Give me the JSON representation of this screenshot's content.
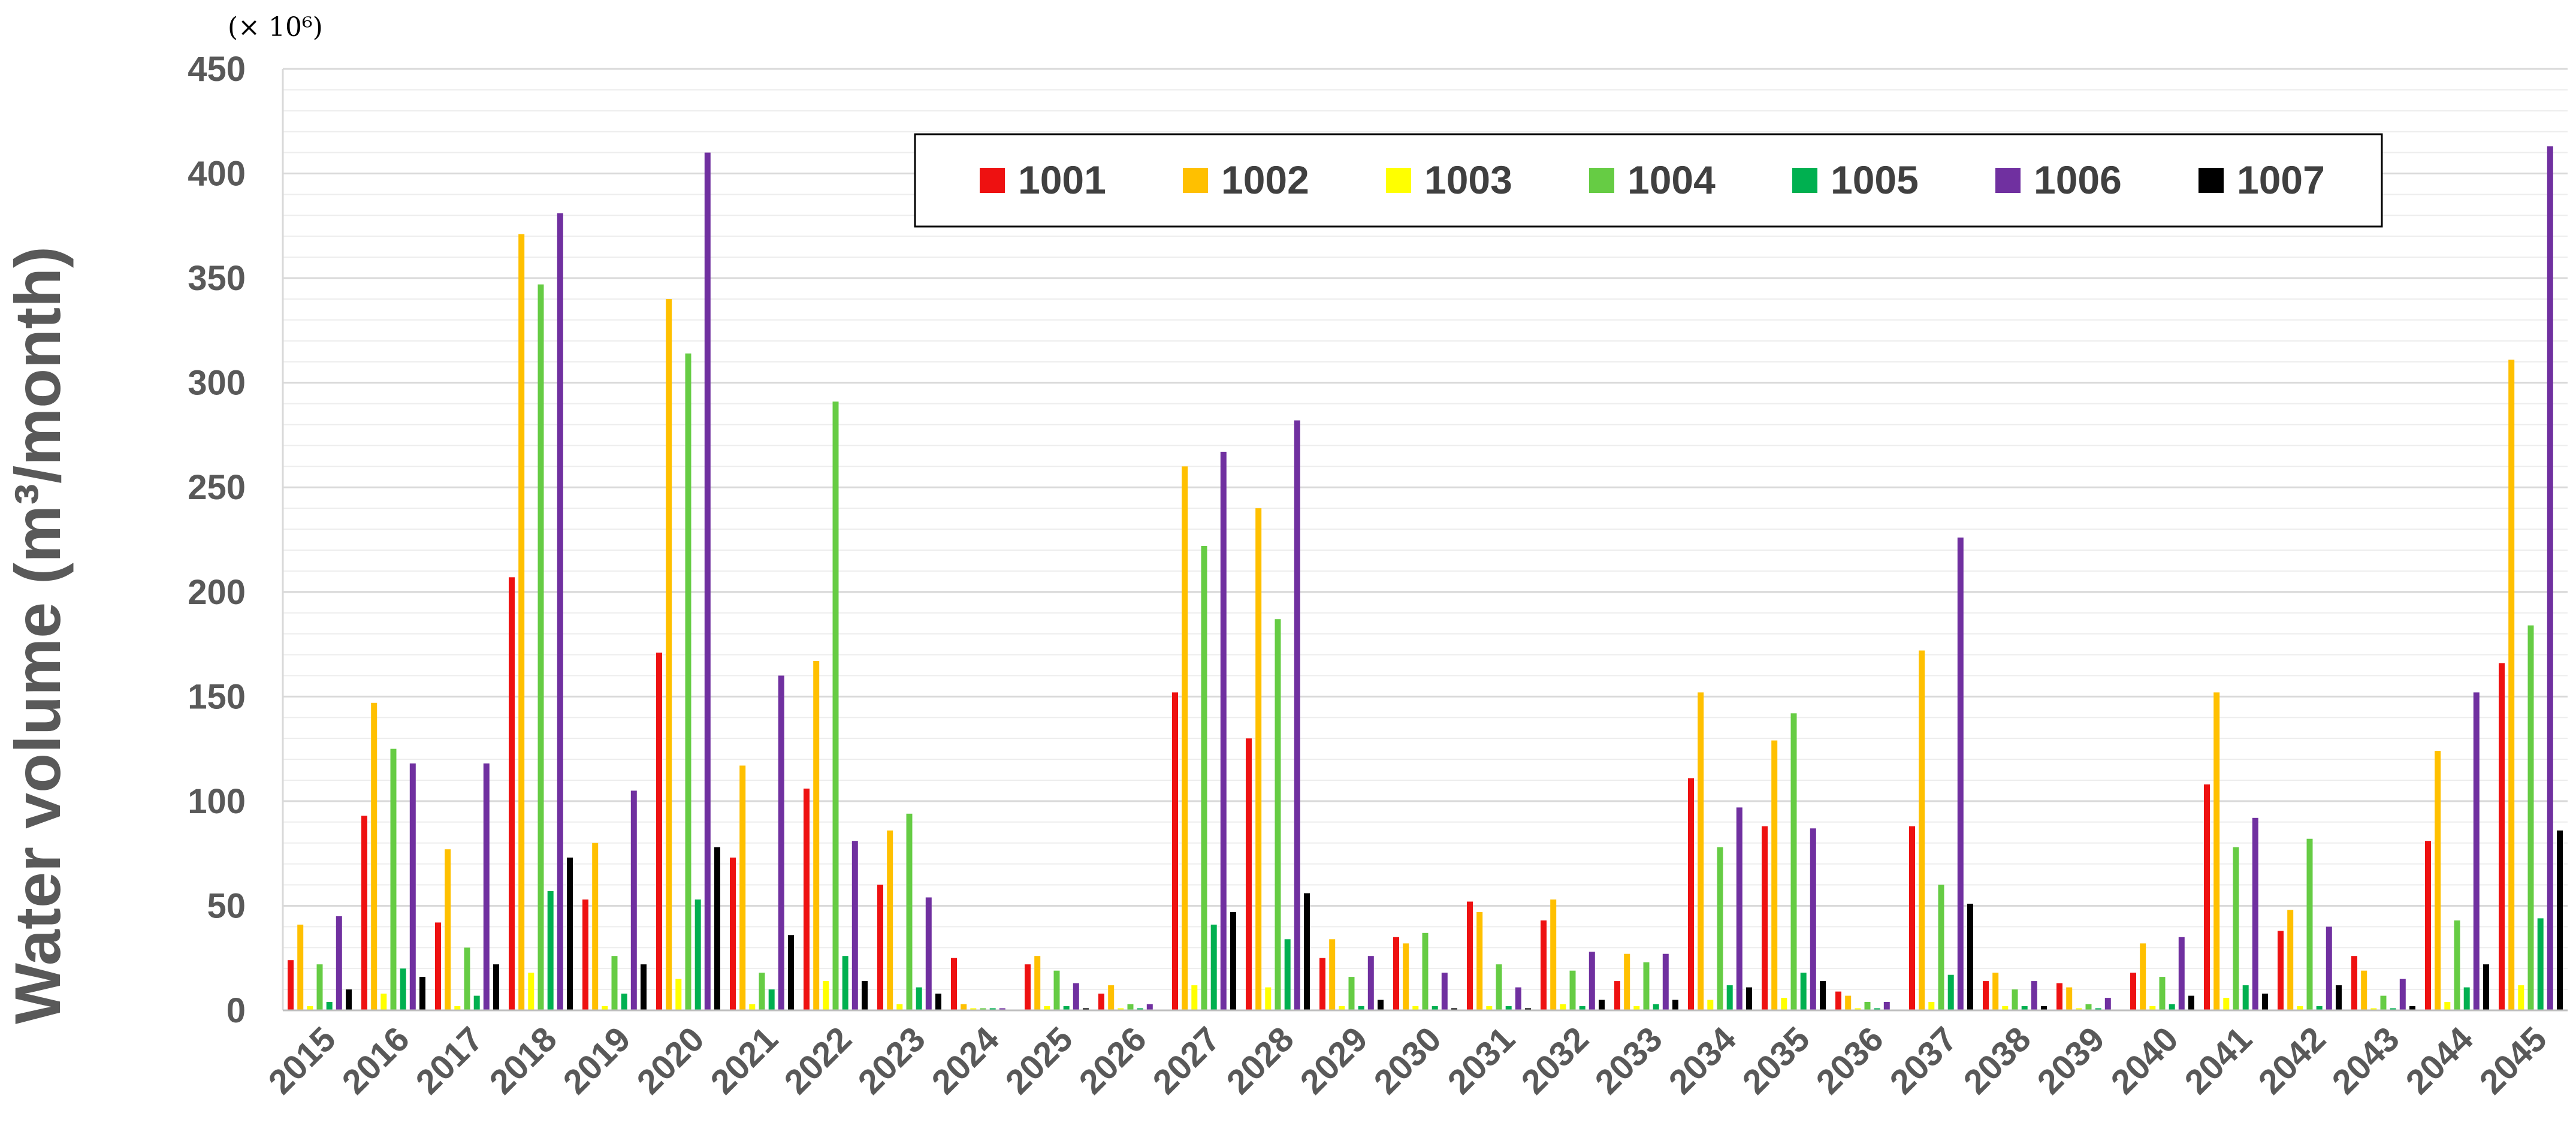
{
  "chart_data": {
    "type": "bar",
    "ylabel": "Water volume (m³/month)",
    "scale_note": "(× 10⁶)",
    "ylim": [
      0,
      450
    ],
    "yticks": [
      0,
      50,
      100,
      150,
      200,
      250,
      300,
      350,
      400,
      450
    ],
    "grid": true,
    "legend_position": "top-center",
    "categories": [
      "2015",
      "2016",
      "2017",
      "2018",
      "2019",
      "2020",
      "2021",
      "2022",
      "2023",
      "2024",
      "2025",
      "2026",
      "2027",
      "2028",
      "2029",
      "2030",
      "2031",
      "2032",
      "2033",
      "2034",
      "2035",
      "2036",
      "2037",
      "2038",
      "2039",
      "2040",
      "2041",
      "2042",
      "2043",
      "2044",
      "2045"
    ],
    "series": [
      {
        "name": "1001",
        "color": "#ee1111",
        "values": [
          24,
          93,
          42,
          207,
          53,
          171,
          73,
          106,
          60,
          25,
          22,
          8,
          152,
          130,
          25,
          35,
          52,
          43,
          14,
          111,
          88,
          9,
          88,
          14,
          13,
          18,
          108,
          38,
          26,
          81,
          166
        ]
      },
      {
        "name": "1002",
        "color": "#ffc000",
        "values": [
          41,
          147,
          77,
          371,
          80,
          340,
          117,
          167,
          86,
          3,
          26,
          12,
          260,
          240,
          34,
          32,
          47,
          53,
          27,
          152,
          129,
          7,
          172,
          18,
          11,
          32,
          152,
          48,
          19,
          124,
          311
        ]
      },
      {
        "name": "1003",
        "color": "#ffff00",
        "values": [
          2,
          8,
          2,
          18,
          2,
          15,
          3,
          14,
          3,
          1,
          2,
          1,
          12,
          11,
          2,
          2,
          2,
          3,
          2,
          5,
          6,
          1,
          4,
          2,
          1,
          2,
          6,
          2,
          1,
          4,
          12
        ]
      },
      {
        "name": "1004",
        "color": "#66cc44",
        "values": [
          22,
          125,
          30,
          347,
          26,
          314,
          18,
          291,
          94,
          1,
          19,
          3,
          222,
          187,
          16,
          37,
          22,
          19,
          23,
          78,
          142,
          4,
          60,
          10,
          3,
          16,
          78,
          82,
          7,
          43,
          184
        ]
      },
      {
        "name": "1005",
        "color": "#00b050",
        "values": [
          4,
          20,
          7,
          57,
          8,
          53,
          10,
          26,
          11,
          1,
          2,
          1,
          41,
          34,
          2,
          2,
          2,
          2,
          3,
          12,
          18,
          1,
          17,
          2,
          1,
          3,
          12,
          2,
          1,
          11,
          44
        ]
      },
      {
        "name": "1006",
        "color": "#7030a0",
        "values": [
          45,
          118,
          118,
          381,
          105,
          410,
          160,
          81,
          54,
          1,
          13,
          3,
          267,
          282,
          26,
          18,
          11,
          28,
          27,
          97,
          87,
          4,
          226,
          14,
          6,
          35,
          92,
          40,
          15,
          152,
          413
        ]
      },
      {
        "name": "1007",
        "color": "#000000",
        "values": [
          10,
          16,
          22,
          73,
          22,
          78,
          36,
          14,
          8,
          0,
          1,
          0,
          47,
          56,
          5,
          1,
          1,
          5,
          5,
          11,
          14,
          0,
          51,
          2,
          0,
          7,
          8,
          12,
          2,
          22,
          86
        ]
      }
    ]
  }
}
